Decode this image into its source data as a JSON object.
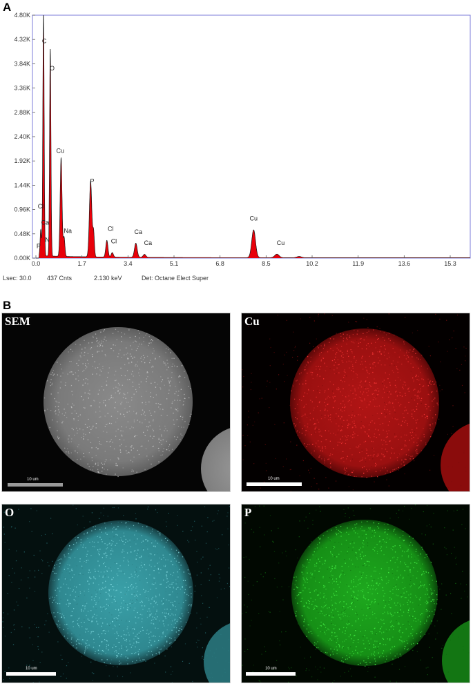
{
  "panels": {
    "a_letter": "A",
    "b_letter": "B"
  },
  "chart_data": {
    "type": "line",
    "title": "",
    "xlabel": "",
    "ylabel": "",
    "xlim": [
      0.0,
      17.0
    ],
    "ylim": [
      0,
      4800
    ],
    "x_ticks": [
      0.0,
      1.7,
      3.4,
      5.1,
      6.8,
      8.5,
      10.2,
      11.9,
      13.6,
      15.3
    ],
    "x_tick_labels": [
      "0.0",
      "1.7",
      "3.4",
      "5.1",
      "6.8",
      "8.5",
      "10.2",
      "11.9",
      "13.6",
      "15.3"
    ],
    "y_ticks": [
      0,
      480,
      960,
      1440,
      1920,
      2400,
      2880,
      3360,
      3840,
      4320,
      4800
    ],
    "y_tick_labels": [
      "0.00K",
      "0.48K",
      "0.96K",
      "1.44K",
      "1.92K",
      "2.40K",
      "2.88K",
      "3.36K",
      "3.84K",
      "4.32K",
      "4.80K"
    ],
    "grid": false,
    "series": [
      {
        "color": "#e8000a",
        "peaks": [
          {
            "x": 0.18,
            "y": 520,
            "w": 0.025
          },
          {
            "x": 0.28,
            "y": 4800,
            "w": 0.025
          },
          {
            "x": 0.53,
            "y": 4100,
            "w": 0.025
          },
          {
            "x": 0.93,
            "y": 1950,
            "w": 0.035
          },
          {
            "x": 1.04,
            "y": 380,
            "w": 0.03
          },
          {
            "x": 2.02,
            "y": 1500,
            "w": 0.045
          },
          {
            "x": 2.13,
            "y": 480,
            "w": 0.03
          },
          {
            "x": 2.62,
            "y": 330,
            "w": 0.04
          },
          {
            "x": 2.82,
            "y": 90,
            "w": 0.04
          },
          {
            "x": 3.69,
            "y": 280,
            "w": 0.05
          },
          {
            "x": 4.01,
            "y": 60,
            "w": 0.05
          },
          {
            "x": 8.04,
            "y": 550,
            "w": 0.07
          },
          {
            "x": 8.9,
            "y": 70,
            "w": 0.08
          },
          {
            "x": 9.72,
            "y": 25,
            "w": 0.08
          }
        ]
      }
    ],
    "peak_labels": [
      {
        "text": "C",
        "x": 0.31,
        "y": 4250
      },
      {
        "text": "O",
        "x": 0.6,
        "y": 3710
      },
      {
        "text": "Cu",
        "x": 0.9,
        "y": 2080
      },
      {
        "text": "Cl",
        "x": 0.18,
        "y": 980
      },
      {
        "text": "Ca",
        "x": 0.34,
        "y": 660
      },
      {
        "text": "Na",
        "x": 1.18,
        "y": 500
      },
      {
        "text": "P",
        "x": 2.08,
        "y": 1480
      },
      {
        "text": "Cl",
        "x": 2.76,
        "y": 540
      },
      {
        "text": "Cl",
        "x": 2.88,
        "y": 290
      },
      {
        "text": "Ca",
        "x": 3.78,
        "y": 480
      },
      {
        "text": "Ca",
        "x": 4.14,
        "y": 260
      },
      {
        "text": "Cu",
        "x": 8.04,
        "y": 740
      },
      {
        "text": "Cu",
        "x": 9.04,
        "y": 260
      },
      {
        "text": "N",
        "x": 0.42,
        "y": 320
      },
      {
        "text": "P",
        "x": 0.1,
        "y": 200
      }
    ]
  },
  "footer": {
    "lsec": "Lsec: 30.0",
    "counts": "437 Cnts",
    "energy": "2.130 keV",
    "detector": "Det: Octane Elect Super"
  },
  "maps": [
    {
      "label": "SEM",
      "scale": "10 um",
      "color": "#b4b4b4"
    },
    {
      "label": "Cu",
      "scale": "10 um",
      "color": "#d01818"
    },
    {
      "label": "O",
      "scale": "10 um",
      "color": "#48b8c0"
    },
    {
      "label": "P",
      "scale": "10 um",
      "color": "#20c020"
    }
  ]
}
